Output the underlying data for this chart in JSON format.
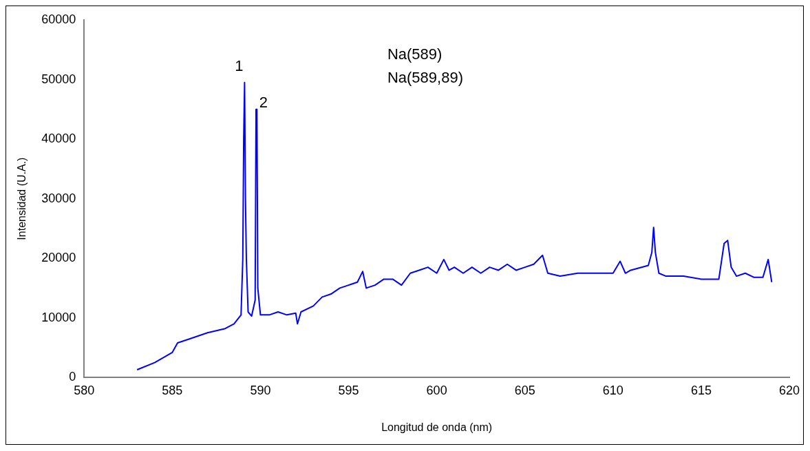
{
  "chart_data": {
    "type": "line",
    "xlabel": "Longitud de onda (nm)",
    "ylabel": "Intensidad (U.A.)",
    "xlim": [
      580,
      620
    ],
    "xticks": [
      580,
      585,
      590,
      595,
      600,
      605,
      610,
      615,
      620
    ],
    "ylim": [
      0,
      60000
    ],
    "yticks": [
      0,
      10000,
      20000,
      30000,
      40000,
      50000,
      60000
    ],
    "grid": false,
    "legend": false,
    "marker": "none",
    "line_style": "solid",
    "annotations": [
      {
        "text": "1",
        "x": 589.1,
        "y": 49500
      },
      {
        "text": "2",
        "x": 589.78,
        "y": 45000
      },
      "Na(589)",
      "Na(589,89)"
    ],
    "series": [
      {
        "color": "#0000ff",
        "x": [
          583.0,
          584.0,
          585.0,
          585.3,
          586,
          587,
          588,
          588.5,
          588.9,
          589.0,
          589.05,
          589.1,
          589.15,
          589.2,
          589.3,
          589.5,
          589.7,
          589.75,
          589.8,
          589.85,
          590.0,
          590.5,
          591,
          591.5,
          592,
          592.1,
          592.3,
          593,
          593.5,
          594,
          594.5,
          595,
          595.5,
          595.8,
          596,
          596.5,
          597,
          597.5,
          598,
          598.5,
          599,
          599.5,
          600,
          600.4,
          600.7,
          601,
          601.5,
          602,
          602.5,
          603,
          603.5,
          604,
          604.5,
          605,
          605.5,
          606,
          606.3,
          607,
          608,
          609,
          610,
          610.4,
          610.7,
          611,
          612,
          612.2,
          612.3,
          612.4,
          612.6,
          613,
          614,
          615,
          616,
          616.3,
          616.5,
          616.7,
          617,
          617.5,
          618,
          618.5,
          618.8,
          619
        ],
        "values": [
          1300,
          2500,
          4200,
          5800,
          6500,
          7500,
          8200,
          9000,
          10500,
          20000,
          40000,
          49500,
          30000,
          20000,
          11000,
          10300,
          13000,
          45000,
          45000,
          15000,
          10500,
          10500,
          11000,
          10500,
          10800,
          9000,
          11000,
          12000,
          13500,
          14000,
          15000,
          15500,
          16000,
          17800,
          15000,
          15500,
          16500,
          16500,
          15500,
          17500,
          18000,
          18500,
          17500,
          19800,
          18000,
          18500,
          17500,
          18500,
          17500,
          18500,
          18000,
          19000,
          18000,
          18500,
          19000,
          20500,
          17500,
          17000,
          17500,
          17500,
          17500,
          19500,
          17500,
          18000,
          18800,
          21000,
          25200,
          21000,
          17500,
          17000,
          17000,
          16500,
          16500,
          22500,
          23000,
          18500,
          17000,
          17500,
          16800,
          16800,
          19800,
          16000
        ]
      }
    ]
  }
}
